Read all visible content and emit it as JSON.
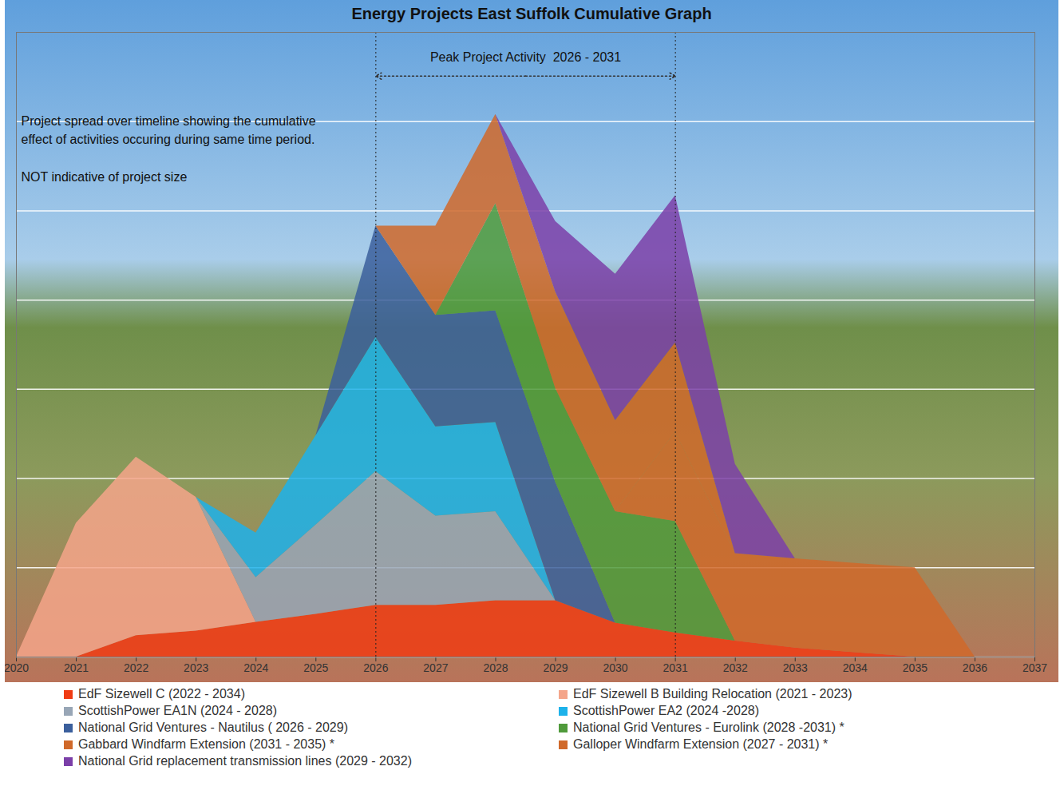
{
  "chart_data": {
    "type": "area",
    "title": "Energy Projects East Suffolk Cumulative Graph",
    "peak": {
      "label": "Peak Project Activity  2026 - 2031",
      "start": 2026,
      "end": 2031
    },
    "notes": [
      [
        "Project spread over timeline showing the cumulative",
        "effect of activities occuring during same time period."
      ],
      [
        "NOT indicative of project size"
      ]
    ],
    "x": [
      2020,
      2021,
      2022,
      2023,
      2024,
      2025,
      2026,
      2027,
      2028,
      2029,
      2030,
      2031,
      2032,
      2033,
      2034,
      2035,
      2036
    ],
    "xlim": [
      2020,
      2037
    ],
    "xticks": [
      2020,
      2021,
      2022,
      2023,
      2024,
      2025,
      2026,
      2027,
      2028,
      2029,
      2030,
      2031,
      2032,
      2033,
      2034,
      2035,
      2036,
      2037
    ],
    "ylim": [
      0,
      7
    ],
    "yticks": [
      0,
      1,
      2,
      3,
      4,
      5,
      6
    ],
    "grid": true,
    "stacked": true,
    "tick_labels": "x",
    "legend": "bottom",
    "series": [
      {
        "name": "EdF Sizewell C (2022 - 2034)",
        "color": "#f03c14",
        "values": [
          0,
          0,
          0.24,
          0.29,
          0.39,
          0.48,
          0.58,
          0.58,
          0.63,
          0.63,
          0.38,
          0.27,
          0.18,
          0.1,
          0.05,
          0,
          0
        ]
      },
      {
        "name": "EdF Sizewell B Building Relocation (2021 - 2023)",
        "color": "#f4a58a",
        "values": [
          0,
          1.5,
          2.0,
          1.5,
          0,
          0,
          0,
          0,
          0,
          0,
          0,
          0,
          0,
          0,
          0,
          0,
          0
        ]
      },
      {
        "name": "ScottishPower EA1N (2024 - 2028)",
        "color": "#98a6b6",
        "values": [
          0,
          0,
          0,
          0,
          0.5,
          1.0,
          1.5,
          1.0,
          1.0,
          0,
          0,
          0,
          0,
          0,
          0,
          0,
          0
        ]
      },
      {
        "name": "ScottishPower EA2 (2024 -2028)",
        "color": "#1db2ea",
        "values": [
          0,
          0,
          0,
          0,
          0.5,
          1.0,
          1.5,
          1.0,
          1.0,
          0,
          0,
          0,
          0,
          0,
          0,
          0,
          0
        ]
      },
      {
        "name": "National Grid Ventures - Nautilus ( 2026 - 2029)",
        "color": "#3b5f9c",
        "values": [
          0,
          0,
          0,
          0,
          0,
          0,
          1.25,
          1.25,
          1.25,
          1.33,
          0,
          0,
          0,
          0,
          0,
          0,
          0
        ]
      },
      {
        "name": "National Grid Ventures - Eurolink (2028 -2031) *",
        "color": "#4f9a3b",
        "values": [
          0,
          0,
          0,
          0,
          0,
          0,
          0,
          0,
          1.2,
          1.05,
          1.25,
          1.25,
          0,
          0,
          0,
          0,
          0
        ]
      },
      {
        "name": "Gabbard Windfarm Extension (2031 - 2035) *",
        "color": "#d0692a",
        "values": [
          0,
          0,
          0,
          0,
          0,
          0,
          0,
          0,
          0,
          0,
          0,
          1.0,
          0.98,
          1.0,
          1.0,
          1.0,
          0
        ]
      },
      {
        "name": "Galloper Windfarm Extension (2027 - 2031) *",
        "color": "#d0692a",
        "values": [
          0,
          0,
          0,
          0,
          0,
          0,
          0,
          1.0,
          1.0,
          1.08,
          1.02,
          1.0,
          0,
          0,
          0,
          0,
          0
        ]
      },
      {
        "name": "National Grid replacement transmission lines (2029 - 2032)",
        "color": "#7b3fa8",
        "values": [
          0,
          0,
          0,
          0,
          0,
          0,
          0,
          0,
          0,
          0.79,
          1.64,
          1.65,
          1.0,
          0,
          0,
          0,
          0
        ]
      }
    ]
  }
}
